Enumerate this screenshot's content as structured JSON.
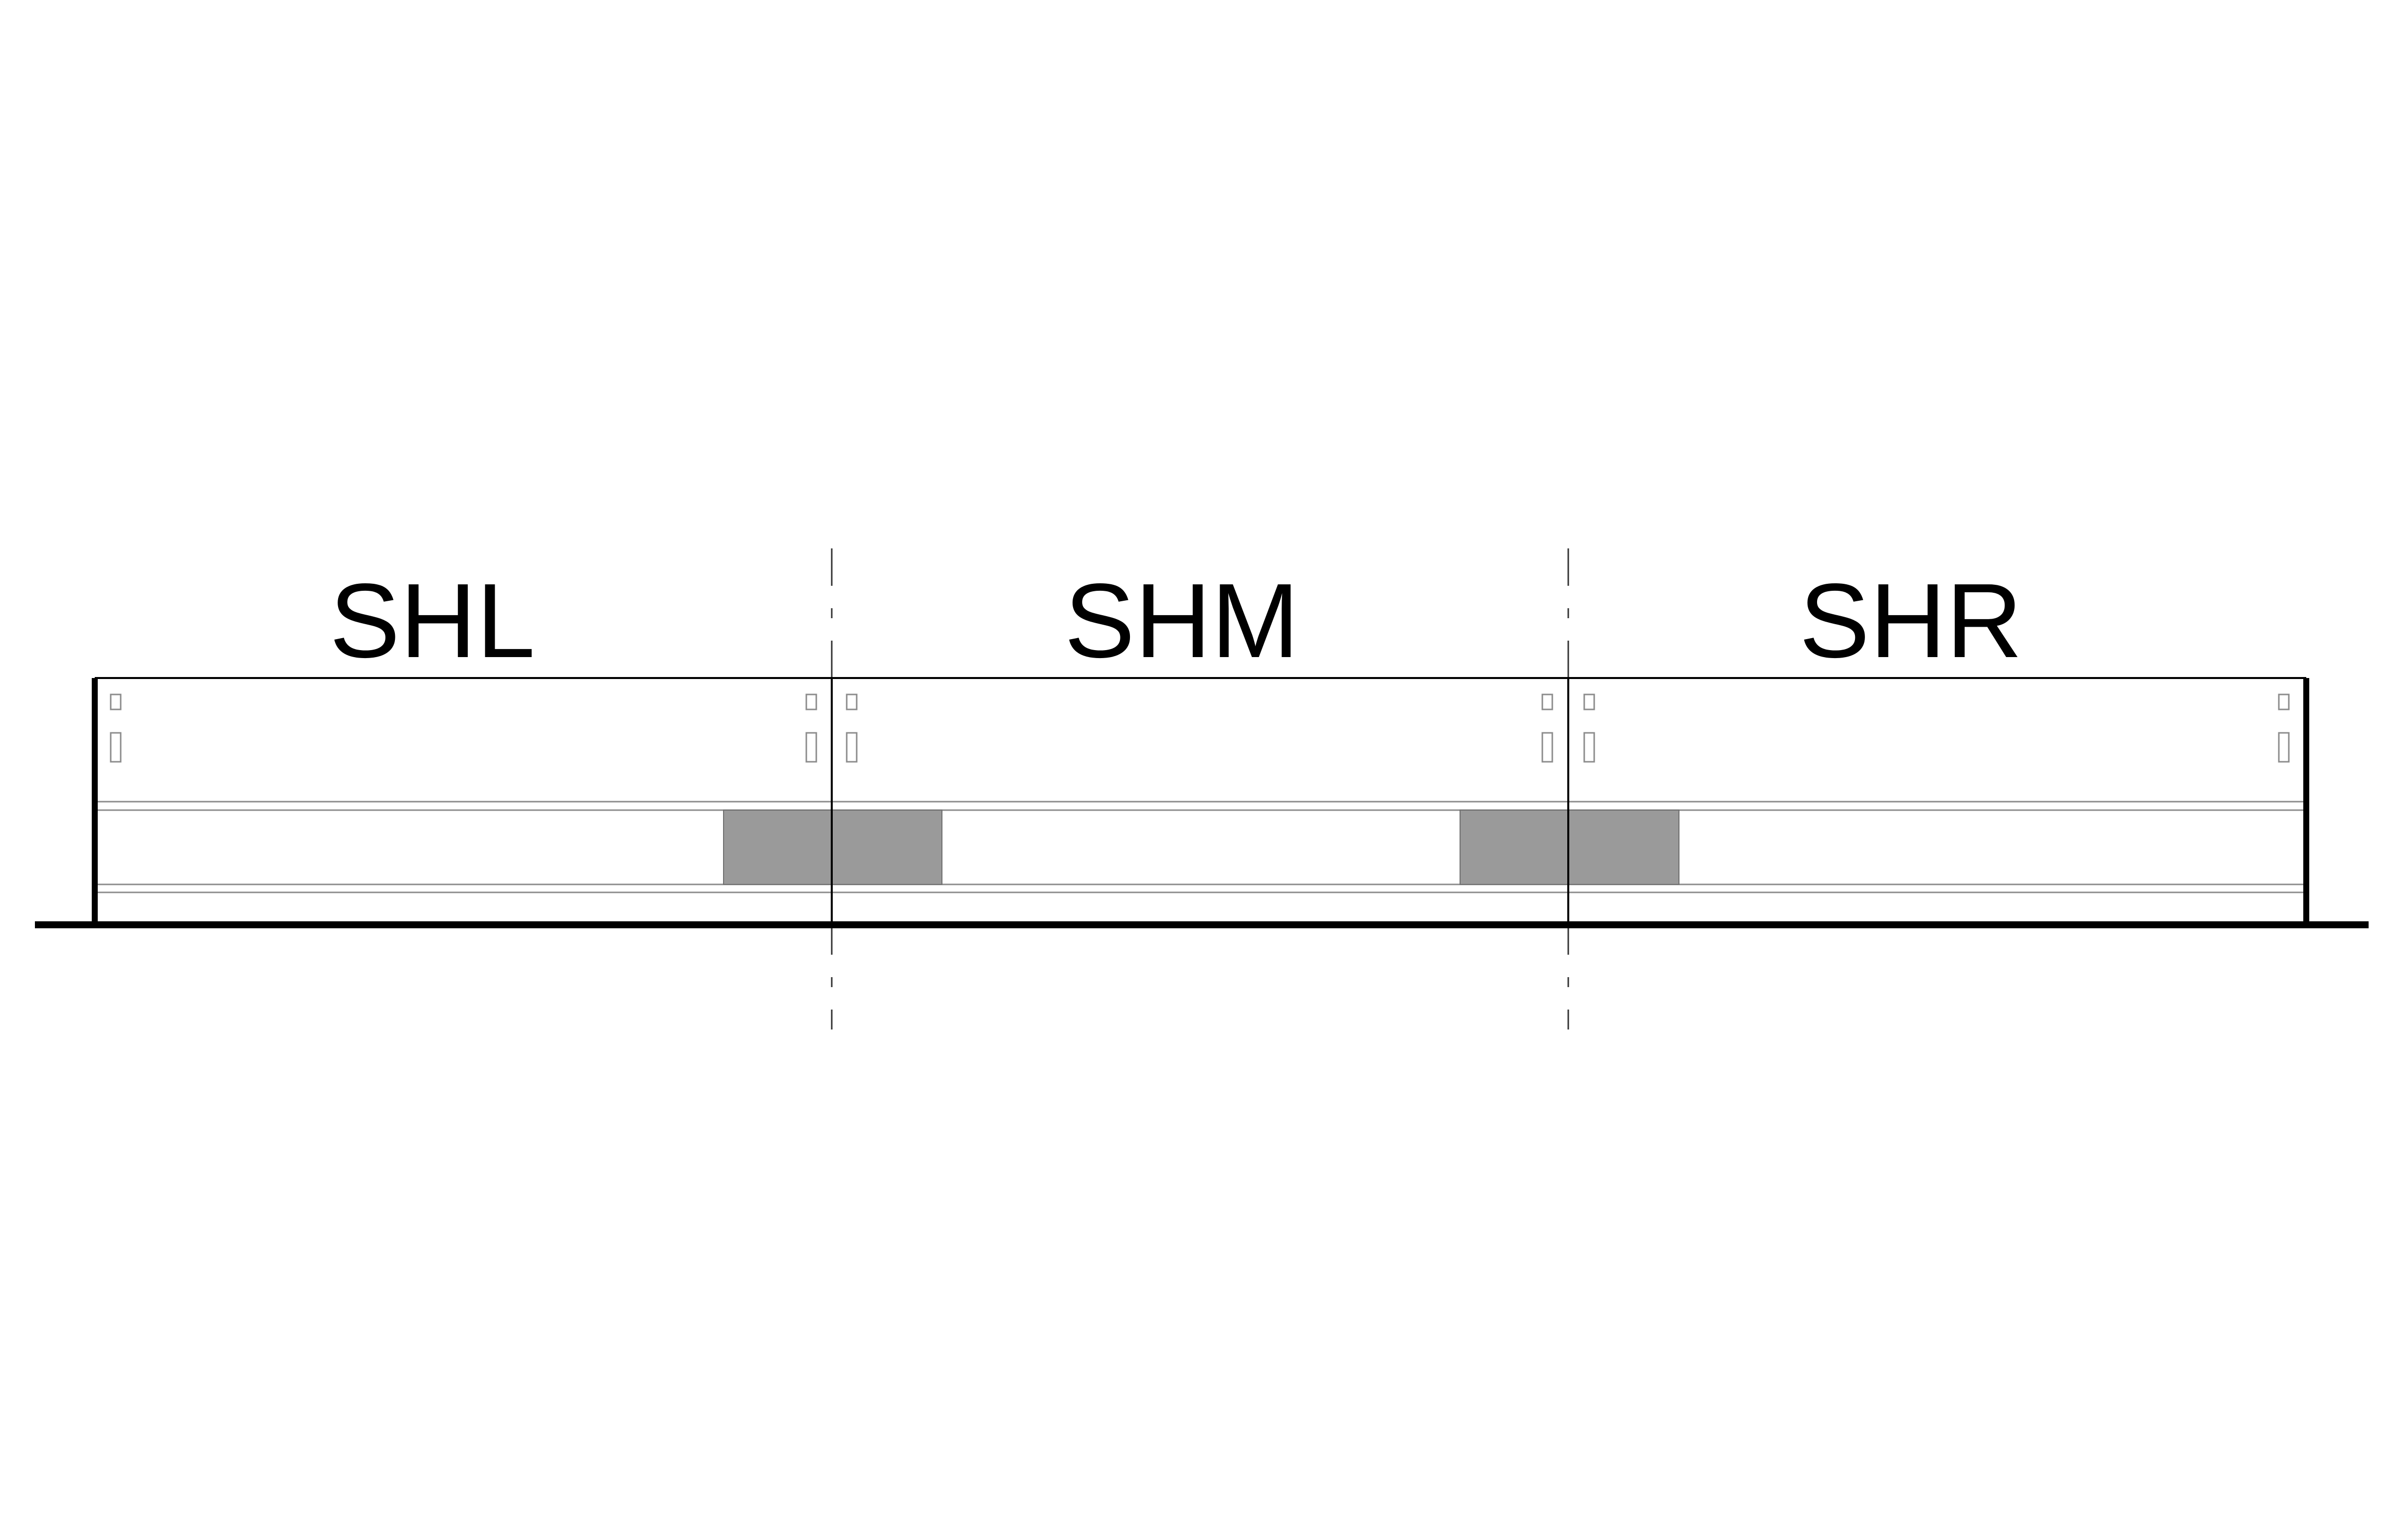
{
  "diagram": {
    "sections": [
      {
        "id": "left",
        "label": "SHL"
      },
      {
        "id": "middle",
        "label": "SHM"
      },
      {
        "id": "right",
        "label": "SHR"
      }
    ],
    "colors": {
      "line": "#000000",
      "thin_line": "#8c8c8c",
      "joint_block": "#9a9a9a",
      "background": "#ffffff"
    }
  }
}
